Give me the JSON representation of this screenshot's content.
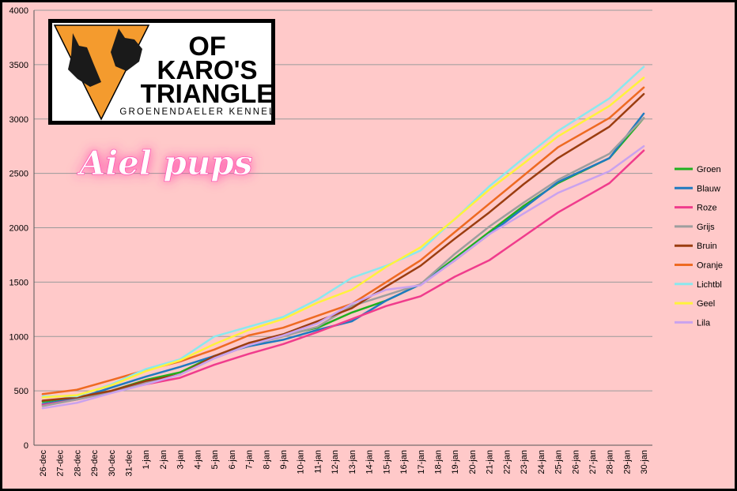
{
  "logo": {
    "line1": "OF",
    "line2": "KARO'S",
    "line3": "TRIANGLE",
    "subtitle": "GROENENDAELER KENNEL"
  },
  "banner": {
    "text": "Aiel pups"
  },
  "colors": {
    "background": "#ffc9c9",
    "grid": "#9a9a9a",
    "logo_orange": "#f49b2e",
    "Groen": "#1fb01f",
    "Blauw": "#1f7ac0",
    "Roze": "#f03c8c",
    "Grijs": "#9e9e9e",
    "Bruin": "#9b3d10",
    "Oranje": "#ee6a22",
    "Lichtbl": "#8ae8ee",
    "Geel": "#fff23c",
    "Lila": "#c9a2ee"
  },
  "chart_data": {
    "type": "line",
    "title": "",
    "xlabel": "",
    "ylabel": "",
    "ylim": [
      0,
      4000
    ],
    "yticks": [
      0,
      500,
      1000,
      1500,
      2000,
      2500,
      3000,
      3500,
      4000
    ],
    "grid": true,
    "legend_position": "right",
    "categories": [
      "26-dec",
      "27-dec",
      "28-dec",
      "29-dec",
      "30-dec",
      "31-dec",
      "1-jan",
      "2-jan",
      "3-jan",
      "4-jan",
      "5-jan",
      "6-jan",
      "7-jan",
      "8-jan",
      "9-jan",
      "10-jan",
      "11-jan",
      "12-jan",
      "13-jan",
      "14-jan",
      "15-jan",
      "16-jan",
      "17-jan",
      "18-jan",
      "19-jan",
      "20-jan",
      "21-jan",
      "22-jan",
      "23-jan",
      "24-jan",
      "25-jan",
      "26-jan",
      "27-jan",
      "28-jan",
      "29-jan",
      "30-jan"
    ],
    "series": [
      {
        "name": "Groen",
        "points": [
          [
            0,
            400
          ],
          [
            2,
            440
          ],
          [
            4,
            500
          ],
          [
            6,
            600
          ],
          [
            8,
            670
          ],
          [
            10,
            820
          ],
          [
            12,
            910
          ],
          [
            14,
            1010
          ],
          [
            16,
            1080
          ],
          [
            18,
            1220
          ],
          [
            20,
            1330
          ],
          [
            22,
            1480
          ],
          [
            24,
            1720
          ],
          [
            26,
            1960
          ],
          [
            28,
            2200
          ],
          [
            30,
            2410
          ],
          [
            33,
            2640
          ],
          [
            35,
            3010
          ]
        ]
      },
      {
        "name": "Blauw",
        "points": [
          [
            0,
            380
          ],
          [
            2,
            430
          ],
          [
            4,
            530
          ],
          [
            6,
            630
          ],
          [
            8,
            720
          ],
          [
            10,
            820
          ],
          [
            12,
            910
          ],
          [
            14,
            970
          ],
          [
            16,
            1060
          ],
          [
            18,
            1140
          ],
          [
            20,
            1330
          ],
          [
            22,
            1480
          ],
          [
            24,
            1700
          ],
          [
            26,
            1940
          ],
          [
            28,
            2180
          ],
          [
            30,
            2420
          ],
          [
            33,
            2640
          ],
          [
            35,
            3050
          ]
        ]
      },
      {
        "name": "Roze",
        "points": [
          [
            0,
            370
          ],
          [
            2,
            420
          ],
          [
            4,
            490
          ],
          [
            6,
            560
          ],
          [
            8,
            620
          ],
          [
            10,
            740
          ],
          [
            12,
            840
          ],
          [
            14,
            930
          ],
          [
            16,
            1040
          ],
          [
            18,
            1160
          ],
          [
            20,
            1280
          ],
          [
            22,
            1370
          ],
          [
            24,
            1550
          ],
          [
            26,
            1700
          ],
          [
            28,
            1920
          ],
          [
            30,
            2140
          ],
          [
            33,
            2410
          ],
          [
            35,
            2710
          ]
        ]
      },
      {
        "name": "Grijs",
        "points": [
          [
            0,
            360
          ],
          [
            2,
            420
          ],
          [
            4,
            490
          ],
          [
            6,
            580
          ],
          [
            8,
            650
          ],
          [
            10,
            800
          ],
          [
            12,
            920
          ],
          [
            14,
            1000
          ],
          [
            16,
            1090
          ],
          [
            18,
            1280
          ],
          [
            20,
            1380
          ],
          [
            22,
            1480
          ],
          [
            24,
            1760
          ],
          [
            26,
            2010
          ],
          [
            28,
            2230
          ],
          [
            30,
            2440
          ],
          [
            33,
            2680
          ],
          [
            35,
            3010
          ]
        ]
      },
      {
        "name": "Bruin",
        "points": [
          [
            0,
            410
          ],
          [
            2,
            440
          ],
          [
            4,
            500
          ],
          [
            6,
            590
          ],
          [
            8,
            650
          ],
          [
            10,
            820
          ],
          [
            12,
            940
          ],
          [
            14,
            1020
          ],
          [
            16,
            1140
          ],
          [
            18,
            1260
          ],
          [
            20,
            1460
          ],
          [
            22,
            1650
          ],
          [
            24,
            1900
          ],
          [
            26,
            2140
          ],
          [
            28,
            2400
          ],
          [
            30,
            2640
          ],
          [
            33,
            2930
          ],
          [
            35,
            3230
          ]
        ]
      },
      {
        "name": "Oranje",
        "points": [
          [
            0,
            470
          ],
          [
            2,
            510
          ],
          [
            4,
            600
          ],
          [
            6,
            690
          ],
          [
            8,
            770
          ],
          [
            10,
            880
          ],
          [
            12,
            1010
          ],
          [
            14,
            1080
          ],
          [
            16,
            1190
          ],
          [
            18,
            1300
          ],
          [
            20,
            1500
          ],
          [
            22,
            1700
          ],
          [
            24,
            1960
          ],
          [
            26,
            2220
          ],
          [
            28,
            2480
          ],
          [
            30,
            2740
          ],
          [
            33,
            3010
          ],
          [
            35,
            3290
          ]
        ]
      },
      {
        "name": "Lichtbl",
        "points": [
          [
            0,
            450
          ],
          [
            2,
            450
          ],
          [
            4,
            560
          ],
          [
            6,
            700
          ],
          [
            8,
            790
          ],
          [
            10,
            1000
          ],
          [
            12,
            1090
          ],
          [
            14,
            1180
          ],
          [
            16,
            1340
          ],
          [
            18,
            1540
          ],
          [
            20,
            1650
          ],
          [
            22,
            1790
          ],
          [
            24,
            2080
          ],
          [
            26,
            2380
          ],
          [
            28,
            2640
          ],
          [
            30,
            2890
          ],
          [
            33,
            3190
          ],
          [
            35,
            3480
          ]
        ]
      },
      {
        "name": "Geel",
        "points": [
          [
            0,
            440
          ],
          [
            2,
            460
          ],
          [
            4,
            550
          ],
          [
            6,
            680
          ],
          [
            8,
            780
          ],
          [
            10,
            930
          ],
          [
            12,
            1060
          ],
          [
            14,
            1160
          ],
          [
            16,
            1310
          ],
          [
            18,
            1430
          ],
          [
            20,
            1640
          ],
          [
            22,
            1820
          ],
          [
            24,
            2080
          ],
          [
            26,
            2350
          ],
          [
            28,
            2590
          ],
          [
            30,
            2840
          ],
          [
            33,
            3120
          ],
          [
            35,
            3380
          ]
        ]
      },
      {
        "name": "Lila",
        "points": [
          [
            0,
            340
          ],
          [
            2,
            390
          ],
          [
            4,
            480
          ],
          [
            6,
            560
          ],
          [
            8,
            650
          ],
          [
            10,
            800
          ],
          [
            12,
            920
          ],
          [
            14,
            1010
          ],
          [
            16,
            1120
          ],
          [
            18,
            1300
          ],
          [
            20,
            1430
          ],
          [
            22,
            1470
          ],
          [
            24,
            1700
          ],
          [
            26,
            1940
          ],
          [
            28,
            2130
          ],
          [
            30,
            2320
          ],
          [
            33,
            2520
          ],
          [
            35,
            2750
          ]
        ]
      }
    ]
  }
}
